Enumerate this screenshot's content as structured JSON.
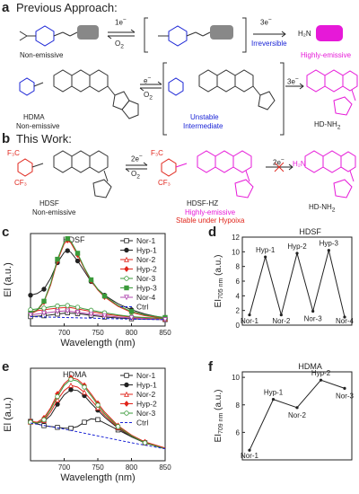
{
  "panel_a": {
    "letter": "a",
    "heading": "Previous Approach:",
    "row1": {
      "step1_top": "1e",
      "step1_sup": "−",
      "step1_bottom": "O",
      "step1_bottom_sub": "2",
      "left_label": "Non-emissive",
      "step2": "3e",
      "step2_sup": "−",
      "step2_note": "Irreversible",
      "product_group": "H₂N",
      "right_label": "Highly-emissive"
    },
    "row2": {
      "left_name": "HDMA",
      "left_desc": "Non-emissive",
      "step1_top": "e",
      "step1_sup": "−",
      "step1_bottom": "O",
      "step1_bottom_sub": "2",
      "mid_line1": "Unstable",
      "mid_line2": "Intermediate",
      "step2": "3e",
      "step2_sup": "−",
      "right_name": "HD-NH",
      "right_name_sub": "2"
    }
  },
  "panel_b": {
    "letter": "b",
    "heading": "This Work:",
    "left_name": "HDSF",
    "left_desc": "Non-emissive",
    "step1_top": "2e",
    "step1_sup": "−",
    "step1_bottom": "O",
    "step1_bottom_sub": "2",
    "mid_name": "HDSF-HZ",
    "mid_line2": "Highly-emissive",
    "mid_line3": "Stable under Hypoixa",
    "step2": "2e",
    "step2_sup": "−",
    "right_name": "HD-NH",
    "right_name_sub": "2",
    "group_cf3": "CF₃",
    "group_f3c": "F₃C",
    "group_h2n": "H₂N"
  },
  "panel_c": {
    "letter": "c"
  },
  "panel_d": {
    "letter": "d"
  },
  "panel_e": {
    "letter": "e"
  },
  "panel_f": {
    "letter": "f"
  },
  "colors": {
    "blue": "#1a24d6",
    "magenta": "#e619d8",
    "red": "#e0251b"
  },
  "chart_data": [
    {
      "id": "c",
      "type": "line",
      "title": "HDSF",
      "xlabel": "Wavelength (nm)",
      "ylabel": "El (a.u.)",
      "xlim": [
        650,
        850
      ],
      "ylim": [
        0,
        10.8
      ],
      "xticks": [
        700,
        750,
        800,
        850
      ],
      "legend_position": "right",
      "series": [
        {
          "name": "Nor-1",
          "color": "#222222",
          "marker": "square-open",
          "x": [
            650,
            660,
            670,
            680,
            690,
            700,
            705,
            710,
            720,
            730,
            740,
            750,
            760,
            780,
            800,
            820,
            850
          ],
          "y": [
            1.1,
            1.15,
            1.2,
            1.3,
            1.4,
            1.5,
            1.55,
            1.5,
            1.45,
            1.35,
            1.25,
            1.15,
            1.05,
            0.95,
            0.85,
            0.8,
            0.75
          ]
        },
        {
          "name": "Hyp-1",
          "color": "#222222",
          "marker": "circle",
          "x": [
            650,
            660,
            670,
            680,
            690,
            700,
            705,
            710,
            720,
            730,
            740,
            750,
            760,
            780,
            800,
            820,
            850
          ],
          "y": [
            3.6,
            3.8,
            4.3,
            5.6,
            7.4,
            8.6,
            8.8,
            8.6,
            7.6,
            6.4,
            5.2,
            4.3,
            3.6,
            2.6,
            1.9,
            1.4,
            0.9
          ]
        },
        {
          "name": "Nor-2",
          "color": "#e0251b",
          "marker": "triangle-open",
          "x": [
            650,
            660,
            670,
            680,
            690,
            700,
            705,
            710,
            720,
            730,
            740,
            750,
            760,
            780,
            800,
            820,
            850
          ],
          "y": [
            1.7,
            1.8,
            1.9,
            2.0,
            2.1,
            2.15,
            2.2,
            2.15,
            2.0,
            1.85,
            1.7,
            1.55,
            1.4,
            1.2,
            1.05,
            0.95,
            0.85
          ]
        },
        {
          "name": "Hyp-2",
          "color": "#e0251b",
          "marker": "diamond",
          "x": [
            650,
            660,
            670,
            680,
            690,
            700,
            705,
            710,
            720,
            730,
            740,
            750,
            760,
            780,
            800,
            820,
            850
          ],
          "y": [
            1.4,
            1.8,
            2.8,
            4.8,
            7.6,
            9.6,
            10.0,
            9.7,
            8.3,
            6.7,
            5.3,
            4.2,
            3.4,
            2.3,
            1.6,
            1.2,
            0.9
          ]
        },
        {
          "name": "Nor-3",
          "color": "#3a9a3a",
          "marker": "circle-open",
          "x": [
            650,
            660,
            670,
            680,
            690,
            700,
            705,
            710,
            720,
            730,
            740,
            750,
            760,
            780,
            800,
            820,
            850
          ],
          "y": [
            1.9,
            2.0,
            2.1,
            2.25,
            2.35,
            2.4,
            2.4,
            2.35,
            2.2,
            2.0,
            1.85,
            1.7,
            1.55,
            1.3,
            1.1,
            1.0,
            0.9
          ]
        },
        {
          "name": "Hyp-3",
          "color": "#3a9a3a",
          "marker": "square",
          "x": [
            650,
            660,
            670,
            680,
            690,
            700,
            705,
            710,
            720,
            730,
            740,
            750,
            760,
            780,
            800,
            820,
            850
          ],
          "y": [
            1.5,
            1.9,
            2.9,
            5.0,
            7.8,
            9.8,
            10.2,
            9.9,
            8.5,
            6.8,
            5.4,
            4.3,
            3.5,
            2.4,
            1.7,
            1.3,
            1.0
          ]
        },
        {
          "name": "Nor-4",
          "color": "#b04ab0",
          "marker": "triangle-down-open",
          "x": [
            650,
            660,
            670,
            680,
            690,
            700,
            705,
            710,
            720,
            730,
            740,
            750,
            760,
            780,
            800,
            820,
            850
          ],
          "y": [
            1.3,
            1.4,
            1.5,
            1.6,
            1.7,
            1.75,
            1.75,
            1.7,
            1.6,
            1.5,
            1.4,
            1.3,
            1.2,
            1.05,
            0.95,
            0.85,
            0.75
          ]
        },
        {
          "name": "Ctrl",
          "color": "#1a24d6",
          "marker": "none",
          "x": [
            650,
            700,
            750,
            800,
            850
          ],
          "y": [
            1.1,
            1.0,
            0.9,
            0.8,
            0.75
          ]
        }
      ]
    },
    {
      "id": "d",
      "type": "line",
      "title": "HDSF",
      "xlabel": "",
      "ylabel": "EI705 nm (a.u.)",
      "ylabel_main": "EI",
      "ylabel_sub": "705 nm",
      "ylabel_unit": " (a.u.)",
      "ylim": [
        0,
        12
      ],
      "yticks": [
        0,
        2,
        4,
        6,
        8,
        10,
        12
      ],
      "categories": [
        "Nor-1",
        "Hyp-1",
        "Nor-2",
        "Hyp-2",
        "Nor-3",
        "Hyp-3",
        "Nor-4"
      ],
      "values": [
        1.4,
        9.3,
        1.4,
        9.8,
        1.9,
        10.2,
        1.1
      ]
    },
    {
      "id": "e",
      "type": "line",
      "title": "HDMA",
      "xlabel": "Wavelength (nm)",
      "ylabel": "El (a.u.)",
      "xlim": [
        650,
        850
      ],
      "ylim": [
        0,
        10.8
      ],
      "xticks": [
        700,
        750,
        800,
        850
      ],
      "legend_position": "right",
      "series": [
        {
          "name": "Nor-1",
          "color": "#222222",
          "marker": "square-open",
          "x": [
            650,
            660,
            670,
            680,
            690,
            700,
            710,
            720,
            730,
            740,
            750,
            760,
            780,
            800,
            820,
            850
          ],
          "y": [
            4.6,
            4.3,
            4.1,
            4.0,
            3.9,
            3.8,
            3.8,
            4.0,
            4.5,
            4.9,
            4.8,
            4.4,
            3.6,
            2.8,
            2.1,
            1.4
          ]
        },
        {
          "name": "Hyp-1",
          "color": "#222222",
          "marker": "circle",
          "x": [
            650,
            660,
            670,
            680,
            690,
            700,
            710,
            720,
            730,
            740,
            750,
            760,
            780,
            800,
            820,
            850
          ],
          "y": [
            4.6,
            4.4,
            4.6,
            5.3,
            6.6,
            7.7,
            8.3,
            8.2,
            7.6,
            6.7,
            5.9,
            5.1,
            3.8,
            2.8,
            2.1,
            1.4
          ]
        },
        {
          "name": "Nor-2",
          "color": "#e0251b",
          "marker": "triangle-open",
          "x": [
            650,
            660,
            670,
            680,
            690,
            700,
            710,
            720,
            730,
            740,
            750,
            760,
            780,
            800,
            820,
            850
          ],
          "y": [
            4.5,
            4.4,
            4.7,
            5.7,
            7.1,
            8.2,
            8.8,
            8.6,
            8.0,
            7.1,
            6.2,
            5.3,
            3.9,
            2.9,
            2.1,
            1.4
          ]
        },
        {
          "name": "Hyp-2",
          "color": "#e0251b",
          "marker": "diamond",
          "x": [
            650,
            660,
            670,
            680,
            690,
            700,
            710,
            720,
            730,
            740,
            750,
            760,
            780,
            800,
            820,
            850
          ],
          "y": [
            4.6,
            4.5,
            5.0,
            6.2,
            7.8,
            9.0,
            9.7,
            9.5,
            8.8,
            7.8,
            6.7,
            5.7,
            4.1,
            3.0,
            2.2,
            1.5
          ]
        },
        {
          "name": "Nor-3",
          "color": "#3a9a3a",
          "marker": "circle-open",
          "x": [
            650,
            660,
            670,
            680,
            690,
            700,
            710,
            720,
            730,
            740,
            750,
            760,
            780,
            800,
            820,
            850
          ],
          "y": [
            4.5,
            4.4,
            4.8,
            6.0,
            7.5,
            8.8,
            9.5,
            9.3,
            8.6,
            7.6,
            6.5,
            5.5,
            4.0,
            2.9,
            2.1,
            1.4
          ]
        },
        {
          "name": "Ctrl",
          "color": "#1a24d6",
          "marker": "none",
          "x": [
            650,
            700,
            750,
            800,
            850
          ],
          "y": [
            4.4,
            3.7,
            2.9,
            2.1,
            1.4
          ]
        }
      ]
    },
    {
      "id": "f",
      "type": "line",
      "title": "HDMA",
      "xlabel": "",
      "ylabel": "EI709 nm (a.u.)",
      "ylabel_main": "EI",
      "ylabel_sub": "709 nm",
      "ylabel_unit": " (a.u.)",
      "ylim": [
        4,
        10.4
      ],
      "yticks": [
        6,
        8,
        10
      ],
      "categories": [
        "Nor-1",
        "Hyp-1",
        "Nor-2",
        "Hyp-2",
        "Nor-3"
      ],
      "values": [
        4.7,
        8.4,
        7.8,
        9.8,
        9.2
      ]
    }
  ]
}
